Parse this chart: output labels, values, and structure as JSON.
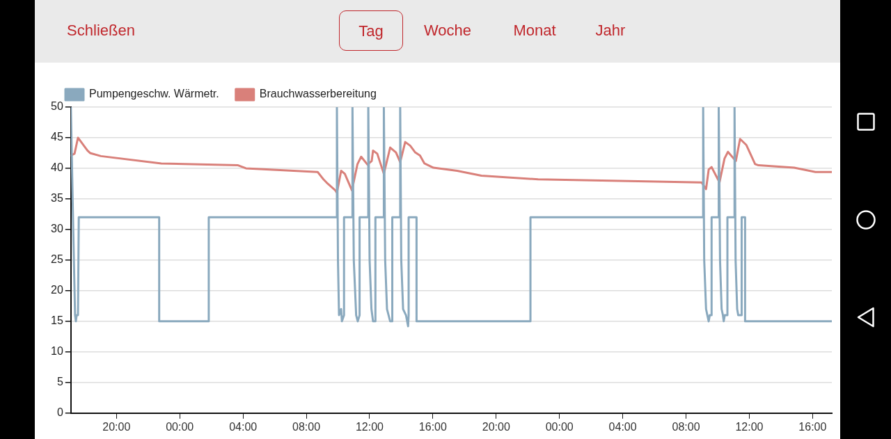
{
  "chart_data": {
    "type": "line",
    "annotations": [
      "Schließen",
      "Tag",
      "Woche",
      "Monat",
      "Jahr"
    ],
    "xlim": [
      "--01-01T17:07",
      "--01-03T17:13"
    ],
    "xticks": [
      {
        "value": "--01-01T20:00",
        "label": "20:00"
      },
      {
        "value": "--01-02T00:00",
        "label": "00:00"
      },
      {
        "value": "--01-02T04:00",
        "label": "04:00"
      },
      {
        "value": "--01-02T08:00",
        "label": "08:00"
      },
      {
        "value": "--01-02T12:00",
        "label": "12:00"
      },
      {
        "value": "--01-02T16:00",
        "label": "16:00"
      },
      {
        "value": "--01-02T20:00",
        "label": "20:00"
      },
      {
        "value": "--01-03T00:00",
        "label": "00:00"
      },
      {
        "value": "--01-03T04:00",
        "label": "04:00"
      },
      {
        "value": "--01-03T08:00",
        "label": "08:00"
      },
      {
        "value": "--01-03T12:00",
        "label": "12:00"
      },
      {
        "value": "--01-03T16:00",
        "label": "16:00"
      }
    ],
    "ylim": [
      0,
      50
    ],
    "yticks": [
      0,
      5,
      10,
      15,
      20,
      25,
      30,
      35,
      40,
      45,
      50
    ],
    "grid": "y",
    "legend": "top left",
    "marker": "none",
    "line_style": "solid",
    "series": [
      {
        "name": "Pumpengeschw. Wärmetr.",
        "color": "#8aa9be",
        "x": [
          "--01-01T17:07",
          "--01-01T17:16",
          "--01-01T17:23",
          "--01-01T17:26",
          "--01-01T17:29",
          "--01-01T17:34",
          "--01-01T17:37",
          "--01-01T22:42",
          "--01-01T22:42",
          "--01-02T01:50",
          "--01-02T01:50",
          "--01-02T09:56",
          "--01-02T09:56",
          "--01-02T10:00",
          "--01-02T10:04",
          "--01-02T10:12",
          "--01-02T10:15",
          "--01-02T10:23",
          "--01-02T10:23",
          "--01-02T10:55",
          "--01-02T10:55",
          "--01-02T11:00",
          "--01-02T11:09",
          "--01-02T11:15",
          "--01-02T11:22",
          "--01-02T11:22",
          "--01-02T11:55",
          "--01-02T11:55",
          "--01-02T12:00",
          "--01-02T12:07",
          "--01-02T12:13",
          "--01-02T12:22",
          "--01-02T12:22",
          "--01-02T12:54",
          "--01-02T12:54",
          "--01-02T12:59",
          "--01-02T13:06",
          "--01-02T13:12",
          "--01-02T13:18",
          "--01-02T13:26",
          "--01-02T13:26",
          "--01-02T13:56",
          "--01-02T13:56",
          "--01-02T14:00",
          "--01-02T14:07",
          "--01-02T14:18",
          "--01-02T14:26",
          "--01-02T14:28",
          "--01-02T14:28",
          "--01-02T14:58",
          "--01-02T14:58",
          "--01-02T22:10",
          "--01-02T22:10",
          "--01-03T09:05",
          "--01-03T09:05",
          "--01-03T09:09",
          "--01-03T09:16",
          "--01-03T09:21",
          "--01-03T09:26",
          "--01-03T09:30",
          "--01-03T09:37",
          "--01-03T09:37",
          "--01-03T10:04",
          "--01-03T10:04",
          "--01-03T10:09",
          "--01-03T10:15",
          "--01-03T10:20",
          "--01-03T10:23",
          "--01-03T10:27",
          "--01-03T10:37",
          "--01-03T10:37",
          "--01-03T11:04",
          "--01-03T11:04",
          "--01-03T11:08",
          "--01-03T11:14",
          "--01-03T11:18",
          "--01-03T11:31",
          "--01-03T11:31",
          "--01-03T11:44",
          "--01-03T11:44",
          "--01-03T17:13"
        ],
        "values": [
          50,
          30,
          16,
          15,
          16,
          16,
          32,
          32,
          15,
          15,
          32,
          32,
          50,
          25,
          16,
          17,
          15,
          16,
          32,
          32,
          50,
          25,
          16,
          15,
          16,
          32,
          32,
          50,
          25,
          17,
          15,
          15,
          32,
          32,
          50,
          25,
          17,
          16,
          15,
          15,
          32,
          32,
          50,
          25,
          17,
          16,
          14.2,
          16,
          32,
          32,
          15,
          15,
          32,
          32,
          50,
          25,
          17,
          16,
          15,
          16,
          16,
          32,
          32,
          50,
          25,
          17,
          16,
          15,
          16,
          16,
          32,
          32,
          50,
          25,
          17,
          16,
          16,
          32,
          32,
          15,
          15
        ]
      },
      {
        "name": "Brauchwasserbereitung",
        "color": "#d9807a",
        "x": [
          "--01-01T17:07",
          "--01-01T17:21",
          "--01-01T17:34",
          "--01-01T18:10",
          "--01-01T18:20",
          "--01-01T19:01",
          "--01-01T22:50",
          "--01-02T03:41",
          "--01-02T04:11",
          "--01-02T08:43",
          "--01-02T09:05",
          "--01-02T09:21",
          "--01-02T09:50",
          "--01-02T09:56",
          "--01-02T10:12",
          "--01-02T10:26",
          "--01-02T10:53",
          "--01-02T11:14",
          "--01-02T11:28",
          "--01-02T11:52",
          "--01-02T12:08",
          "--01-02T12:13",
          "--01-02T12:29",
          "--01-02T12:54",
          "--01-02T13:18",
          "--01-02T13:40",
          "--01-02T13:56",
          "--01-02T14:15",
          "--01-02T14:34",
          "--01-02T14:53",
          "--01-02T15:11",
          "--01-02T15:28",
          "--01-02T16:02",
          "--01-02T17:32",
          "--01-02T19:04",
          "--01-02T22:39",
          "--01-03T08:59",
          "--01-03T09:16",
          "--01-03T09:26",
          "--01-03T09:37",
          "--01-03T10:07",
          "--01-03T10:26",
          "--01-03T10:39",
          "--01-03T11:09",
          "--01-03T11:25",
          "--01-03T11:49",
          "--01-03T12:22",
          "--01-03T12:35",
          "--01-03T14:50",
          "--01-03T16:11",
          "--01-03T17:13"
        ],
        "values": [
          42.1,
          42.4,
          45.0,
          42.9,
          42.5,
          42.0,
          40.8,
          40.5,
          40.0,
          39.4,
          38.2,
          37.5,
          36.4,
          36.0,
          39.6,
          39.1,
          36.4,
          40.7,
          41.9,
          40.6,
          41.2,
          42.9,
          42.4,
          39.1,
          43.4,
          42.6,
          41.0,
          44.3,
          43.7,
          42.6,
          42.1,
          40.8,
          40.1,
          39.6,
          38.8,
          38.2,
          37.7,
          36.6,
          39.8,
          40.2,
          37.7,
          41.6,
          42.7,
          41.2,
          44.8,
          43.8,
          40.7,
          40.5,
          40.1,
          39.4,
          39.4
        ]
      }
    ]
  }
}
